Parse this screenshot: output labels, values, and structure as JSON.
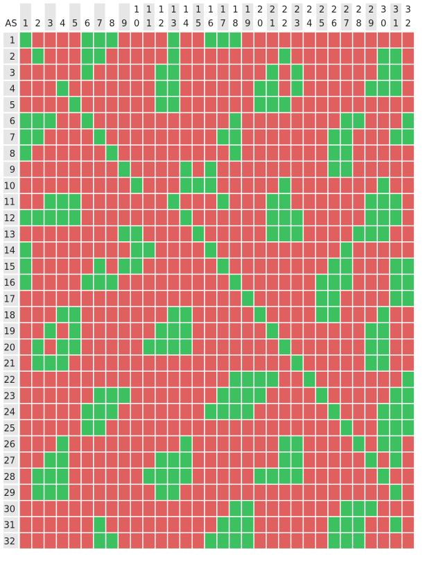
{
  "chart_data": {
    "type": "heatmap",
    "corner_label": "AS",
    "column_labels": [
      "1",
      "2",
      "3",
      "4",
      "5",
      "6",
      "7",
      "8",
      "9",
      "10",
      "11",
      "12",
      "13",
      "14",
      "15",
      "16",
      "17",
      "18",
      "19",
      "20",
      "21",
      "22",
      "23",
      "24",
      "25",
      "26",
      "27",
      "28",
      "29",
      "30",
      "31",
      "32"
    ],
    "row_labels": [
      "1",
      "2",
      "3",
      "4",
      "5",
      "6",
      "7",
      "8",
      "9",
      "10",
      "11",
      "12",
      "13",
      "14",
      "15",
      "16",
      "17",
      "18",
      "19",
      "20",
      "21",
      "22",
      "23",
      "24",
      "25",
      "26",
      "27",
      "28",
      "29",
      "30",
      "31",
      "32"
    ],
    "value_colors": {
      "0": "#e06060",
      "1": "#3cc060"
    },
    "cell_border_color": "#ffffff",
    "header_background": "#e6e6e6",
    "matrix": [
      "10000111000010011100000000000000",
      "01000110000010000000010000000110",
      "00000100000110000000101000000110",
      "00010000000110000001101000001110",
      "00001000000110000001110000000000",
      "11100100000000000100000000110001",
      "11000010000000001100000001100011",
      "10000001000000000100000001100000",
      "00000000100001010000000001100000",
      "00000000010001110000010000000100",
      "00111000000010001000110000001110",
      "11111000000001000000111000001110",
      "00000000110000100000111000011100",
      "10000000011000010000000000100000",
      "10000010110000001000000001100011",
      "10000111000000000100000011100011",
      "00000000000000000010000011000011",
      "00011000000011000001000011000100",
      "00101000000111000000100000001100",
      "01011000001111000000010000001100",
      "01110000000000000000001000001100",
      "00000000000000000111100100000001",
      "00000011100000001111000010000011",
      "00000111000000011110000001000111",
      "00000110000000000000000000100111",
      "00010000000001000000011000010110",
      "00110000000111000000011000001010",
      "01110000001111000001111000000100",
      "01110000000110000000000000000010",
      "00000000000000000110000000111000",
      "00000010000000001110000001110010",
      "00000011000000011110000001110000"
    ]
  }
}
